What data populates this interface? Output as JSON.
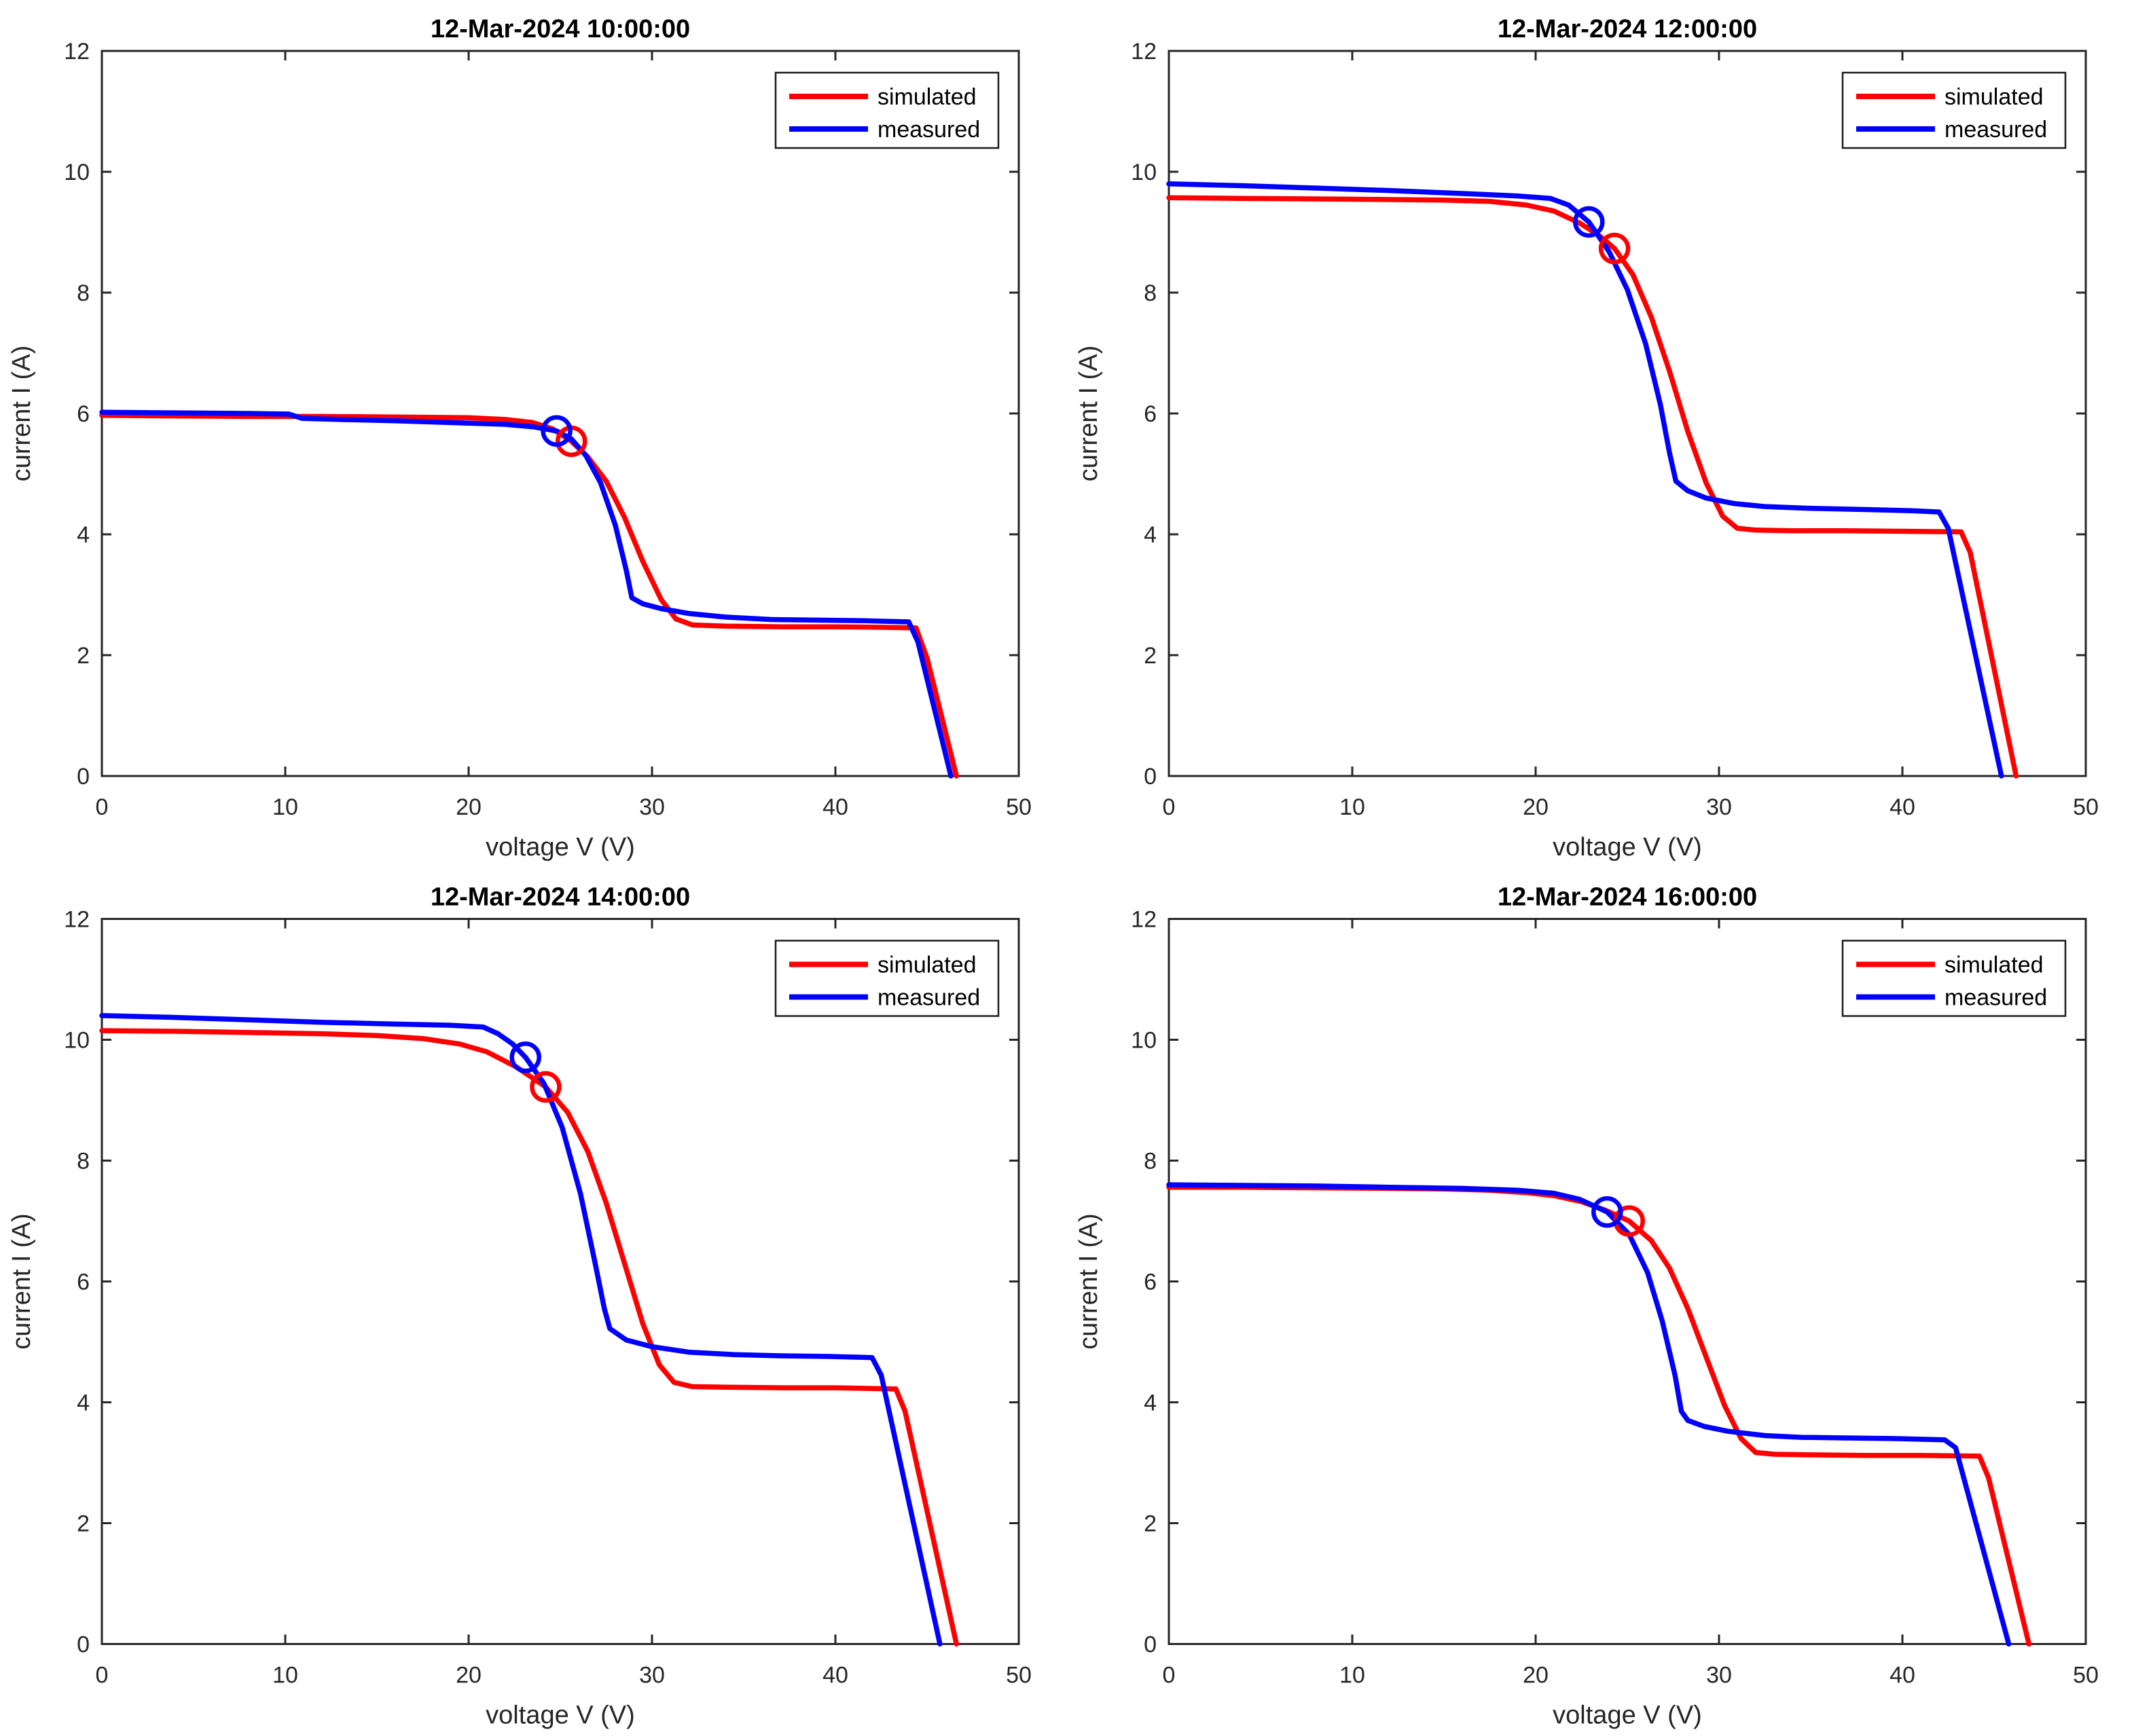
{
  "figure": {
    "background": "#ffffff"
  },
  "legend": {
    "simulated": "simulated",
    "measured": "measured"
  },
  "axes": {
    "xlabel": "voltage V (V)",
    "ylabel": "current I (A)",
    "xlim": [
      0,
      50
    ],
    "ylim": [
      0,
      12
    ],
    "xticks": [
      0,
      10,
      20,
      30,
      40,
      50
    ],
    "yticks": [
      0,
      2,
      4,
      6,
      8,
      10,
      12
    ]
  },
  "colors": {
    "simulated": "#ff0000",
    "measured": "#0000ff",
    "axis": "#262626",
    "title": "#000000",
    "legend_border": "#1a1a1a"
  },
  "chart_data": [
    {
      "type": "line",
      "title": "12-Mar-2024 10:00:00",
      "xlabel": "voltage V (V)",
      "ylabel": "current I (A)",
      "xlim": [
        0,
        50
      ],
      "ylim": [
        0,
        12
      ],
      "grid": false,
      "legend_position": "top-right",
      "series": [
        {
          "name": "simulated",
          "color": "#ff0000",
          "points": [
            [
              0,
              5.97
            ],
            [
              4,
              5.96
            ],
            [
              8,
              5.95
            ],
            [
              12,
              5.95
            ],
            [
              16,
              5.94
            ],
            [
              20,
              5.93
            ],
            [
              22,
              5.9
            ],
            [
              23.5,
              5.85
            ],
            [
              24.6,
              5.74
            ],
            [
              25.6,
              5.54
            ],
            [
              26.5,
              5.28
            ],
            [
              27.5,
              4.88
            ],
            [
              28.5,
              4.28
            ],
            [
              29.5,
              3.55
            ],
            [
              30.5,
              2.92
            ],
            [
              31.3,
              2.6
            ],
            [
              32.2,
              2.5
            ],
            [
              34,
              2.48
            ],
            [
              37,
              2.47
            ],
            [
              40,
              2.47
            ],
            [
              43,
              2.46
            ],
            [
              44.4,
              2.45
            ],
            [
              45.0,
              1.95
            ],
            [
              46.6,
              0
            ]
          ]
        },
        {
          "name": "measured",
          "color": "#0000ff",
          "points": [
            [
              0,
              6.02
            ],
            [
              4,
              6.01
            ],
            [
              8,
              6.0
            ],
            [
              10.2,
              5.99
            ],
            [
              10.9,
              5.92
            ],
            [
              13,
              5.9
            ],
            [
              16,
              5.88
            ],
            [
              19,
              5.85
            ],
            [
              22,
              5.82
            ],
            [
              23.5,
              5.78
            ],
            [
              24.8,
              5.71
            ],
            [
              25.6,
              5.58
            ],
            [
              26.4,
              5.3
            ],
            [
              27.2,
              4.85
            ],
            [
              28.0,
              4.15
            ],
            [
              28.6,
              3.4
            ],
            [
              28.9,
              2.95
            ],
            [
              29.5,
              2.85
            ],
            [
              30.5,
              2.77
            ],
            [
              32,
              2.69
            ],
            [
              34,
              2.63
            ],
            [
              36.5,
              2.59
            ],
            [
              39,
              2.58
            ],
            [
              41.5,
              2.57
            ],
            [
              44.0,
              2.55
            ],
            [
              44.5,
              2.22
            ],
            [
              46.3,
              0
            ]
          ]
        }
      ],
      "mpp_markers": [
        {
          "series": "simulated",
          "v": 25.6,
          "i": 5.54
        },
        {
          "series": "measured",
          "v": 24.8,
          "i": 5.71
        }
      ]
    },
    {
      "type": "line",
      "title": "12-Mar-2024 12:00:00",
      "xlabel": "voltage V (V)",
      "ylabel": "current I (A)",
      "xlim": [
        0,
        50
      ],
      "ylim": [
        0,
        12
      ],
      "grid": false,
      "legend_position": "top-right",
      "series": [
        {
          "name": "simulated",
          "color": "#ff0000",
          "points": [
            [
              0,
              9.57
            ],
            [
              4,
              9.56
            ],
            [
              8,
              9.55
            ],
            [
              12,
              9.54
            ],
            [
              15,
              9.53
            ],
            [
              17.5,
              9.51
            ],
            [
              19.5,
              9.45
            ],
            [
              21,
              9.35
            ],
            [
              22.4,
              9.15
            ],
            [
              23.4,
              8.96
            ],
            [
              24.3,
              8.73
            ],
            [
              25.3,
              8.3
            ],
            [
              26.3,
              7.6
            ],
            [
              27.3,
              6.7
            ],
            [
              28.3,
              5.7
            ],
            [
              29.3,
              4.85
            ],
            [
              30.2,
              4.3
            ],
            [
              31.0,
              4.1
            ],
            [
              32,
              4.07
            ],
            [
              34,
              4.06
            ],
            [
              37,
              4.06
            ],
            [
              40,
              4.05
            ],
            [
              43.2,
              4.04
            ],
            [
              43.7,
              3.7
            ],
            [
              46.2,
              0
            ]
          ]
        },
        {
          "name": "measured",
          "color": "#0000ff",
          "points": [
            [
              0,
              9.8
            ],
            [
              4,
              9.77
            ],
            [
              8,
              9.73
            ],
            [
              12,
              9.69
            ],
            [
              16,
              9.64
            ],
            [
              19,
              9.6
            ],
            [
              20.8,
              9.56
            ],
            [
              21.8,
              9.45
            ],
            [
              22.9,
              9.17
            ],
            [
              24,
              8.68
            ],
            [
              25,
              8.05
            ],
            [
              26,
              7.15
            ],
            [
              26.8,
              6.15
            ],
            [
              27.3,
              5.35
            ],
            [
              27.65,
              4.88
            ],
            [
              28.3,
              4.72
            ],
            [
              29.3,
              4.6
            ],
            [
              30.8,
              4.51
            ],
            [
              32.5,
              4.46
            ],
            [
              35,
              4.43
            ],
            [
              38,
              4.41
            ],
            [
              40.5,
              4.39
            ],
            [
              42.0,
              4.37
            ],
            [
              42.5,
              4.1
            ],
            [
              45.4,
              0
            ]
          ]
        }
      ],
      "mpp_markers": [
        {
          "series": "simulated",
          "v": 24.3,
          "i": 8.73
        },
        {
          "series": "measured",
          "v": 22.9,
          "i": 9.17
        }
      ]
    },
    {
      "type": "line",
      "title": "12-Mar-2024 14:00:00",
      "xlabel": "voltage V (V)",
      "ylabel": "current I (A)",
      "xlim": [
        0,
        50
      ],
      "ylim": [
        0,
        12
      ],
      "grid": false,
      "legend_position": "top-right",
      "series": [
        {
          "name": "simulated",
          "color": "#ff0000",
          "points": [
            [
              0,
              10.15
            ],
            [
              4,
              10.14
            ],
            [
              8,
              10.12
            ],
            [
              12,
              10.1
            ],
            [
              15,
              10.07
            ],
            [
              17.5,
              10.02
            ],
            [
              19.5,
              9.93
            ],
            [
              21,
              9.8
            ],
            [
              22.6,
              9.55
            ],
            [
              24.2,
              9.22
            ],
            [
              25.4,
              8.8
            ],
            [
              26.5,
              8.15
            ],
            [
              27.5,
              7.3
            ],
            [
              28.5,
              6.3
            ],
            [
              29.5,
              5.3
            ],
            [
              30.4,
              4.62
            ],
            [
              31.2,
              4.33
            ],
            [
              32.2,
              4.26
            ],
            [
              34,
              4.25
            ],
            [
              37,
              4.24
            ],
            [
              40,
              4.24
            ],
            [
              43.3,
              4.22
            ],
            [
              43.8,
              3.85
            ],
            [
              46.6,
              0
            ]
          ]
        },
        {
          "name": "measured",
          "color": "#0000ff",
          "points": [
            [
              0,
              10.4
            ],
            [
              4,
              10.37
            ],
            [
              8,
              10.33
            ],
            [
              12,
              10.29
            ],
            [
              16,
              10.26
            ],
            [
              19,
              10.24
            ],
            [
              20.8,
              10.21
            ],
            [
              21.6,
              10.1
            ],
            [
              22.4,
              9.93
            ],
            [
              23.1,
              9.71
            ],
            [
              24.1,
              9.28
            ],
            [
              25.1,
              8.55
            ],
            [
              26.1,
              7.45
            ],
            [
              26.9,
              6.3
            ],
            [
              27.4,
              5.55
            ],
            [
              27.7,
              5.22
            ],
            [
              28.6,
              5.03
            ],
            [
              30,
              4.92
            ],
            [
              32,
              4.83
            ],
            [
              34.5,
              4.79
            ],
            [
              37,
              4.77
            ],
            [
              39.5,
              4.76
            ],
            [
              42.0,
              4.74
            ],
            [
              42.5,
              4.45
            ],
            [
              45.7,
              0
            ]
          ]
        }
      ],
      "mpp_markers": [
        {
          "series": "simulated",
          "v": 24.2,
          "i": 9.22
        },
        {
          "series": "measured",
          "v": 23.1,
          "i": 9.71
        }
      ]
    },
    {
      "type": "line",
      "title": "12-Mar-2024 16:00:00",
      "xlabel": "voltage V (V)",
      "ylabel": "current I (A)",
      "xlim": [
        0,
        50
      ],
      "ylim": [
        0,
        12
      ],
      "grid": false,
      "legend_position": "top-right",
      "series": [
        {
          "name": "simulated",
          "color": "#ff0000",
          "points": [
            [
              0,
              7.56
            ],
            [
              4,
              7.56
            ],
            [
              8,
              7.55
            ],
            [
              12,
              7.54
            ],
            [
              15,
              7.53
            ],
            [
              17.5,
              7.51
            ],
            [
              19.5,
              7.47
            ],
            [
              21,
              7.42
            ],
            [
              22.5,
              7.32
            ],
            [
              23.8,
              7.18
            ],
            [
              25.1,
              7.0
            ],
            [
              26.3,
              6.68
            ],
            [
              27.3,
              6.22
            ],
            [
              28.3,
              5.55
            ],
            [
              29.3,
              4.75
            ],
            [
              30.3,
              3.95
            ],
            [
              31.2,
              3.4
            ],
            [
              32.0,
              3.17
            ],
            [
              33,
              3.14
            ],
            [
              35,
              3.13
            ],
            [
              38,
              3.12
            ],
            [
              41,
              3.12
            ],
            [
              44.2,
              3.11
            ],
            [
              44.7,
              2.75
            ],
            [
              46.9,
              0
            ]
          ]
        },
        {
          "name": "measured",
          "color": "#0000ff",
          "points": [
            [
              0,
              7.6
            ],
            [
              4,
              7.59
            ],
            [
              8,
              7.58
            ],
            [
              12,
              7.56
            ],
            [
              16,
              7.54
            ],
            [
              19,
              7.51
            ],
            [
              21,
              7.46
            ],
            [
              22.4,
              7.36
            ],
            [
              23.9,
              7.15
            ],
            [
              25.1,
              6.78
            ],
            [
              26.1,
              6.15
            ],
            [
              26.9,
              5.35
            ],
            [
              27.6,
              4.45
            ],
            [
              27.95,
              3.85
            ],
            [
              28.3,
              3.7
            ],
            [
              29.2,
              3.6
            ],
            [
              30.5,
              3.52
            ],
            [
              32.5,
              3.45
            ],
            [
              34.5,
              3.42
            ],
            [
              37,
              3.41
            ],
            [
              39.5,
              3.4
            ],
            [
              42.3,
              3.38
            ],
            [
              42.9,
              3.25
            ],
            [
              45.8,
              0
            ]
          ]
        }
      ],
      "mpp_markers": [
        {
          "series": "simulated",
          "v": 25.1,
          "i": 7.0
        },
        {
          "series": "measured",
          "v": 23.9,
          "i": 7.15
        }
      ]
    }
  ]
}
